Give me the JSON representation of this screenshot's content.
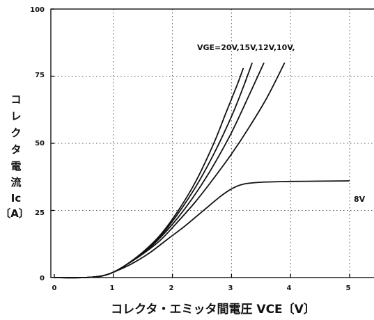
{
  "chart_data": {
    "type": "line",
    "title": "",
    "xlabel": "コレクタ・エミッタ間電圧 VCE〔V〕",
    "ylabel_lines": [
      "コ",
      "レ",
      "ク",
      "タ",
      "電",
      "流",
      "Ic",
      "〔A〕"
    ],
    "xlim": [
      0,
      5.45
    ],
    "ylim": [
      0,
      100
    ],
    "x_ticks": [
      "0",
      "1",
      "2",
      "3",
      "4",
      "5"
    ],
    "y_ticks": [
      "0",
      "25",
      "50",
      "75",
      "100"
    ],
    "grid": "dotted",
    "annotations": {
      "gate_voltages": "VGE=20V,15V,12V,10V,",
      "low_curve": "8V"
    },
    "series": [
      {
        "x": [
          0,
          0.5,
          0.8,
          1.0,
          1.2,
          1.5,
          1.8,
          2.1,
          2.4,
          2.7,
          2.9,
          3.1,
          3.2
        ],
        "y": [
          0,
          0,
          0.6,
          2,
          4.5,
          9.5,
          16,
          25,
          36,
          50,
          61,
          72,
          78
        ]
      },
      {
        "x": [
          0,
          0.5,
          0.8,
          1.0,
          1.2,
          1.5,
          1.8,
          2.1,
          2.4,
          2.7,
          3.0,
          3.2,
          3.35
        ],
        "y": [
          0,
          0,
          0.6,
          2,
          4.5,
          9.3,
          15.5,
          24,
          34,
          46,
          60,
          71,
          80
        ]
      },
      {
        "x": [
          0,
          0.5,
          0.8,
          1.0,
          1.2,
          1.5,
          1.8,
          2.1,
          2.4,
          2.7,
          3.0,
          3.3,
          3.55
        ],
        "y": [
          0,
          0,
          0.6,
          2,
          4.5,
          9,
          15,
          22.5,
          31.5,
          42,
          54,
          68,
          80
        ]
      },
      {
        "x": [
          0,
          0.5,
          0.8,
          1.0,
          1.2,
          1.5,
          1.8,
          2.1,
          2.4,
          2.7,
          3.0,
          3.3,
          3.6,
          3.9
        ],
        "y": [
          0,
          0,
          0.6,
          2,
          4.5,
          8.8,
          14,
          21,
          28.5,
          37,
          46,
          56,
          67,
          80
        ]
      },
      {
        "x": [
          0,
          0.5,
          0.8,
          1.0,
          1.3,
          1.6,
          1.9,
          2.2,
          2.5,
          2.8,
          3.0,
          3.2,
          3.5,
          4.0,
          4.5,
          5.0
        ],
        "y": [
          0,
          0,
          0.6,
          2,
          5,
          9,
          14,
          19,
          24.5,
          30,
          33,
          34.8,
          35.5,
          35.8,
          35.9,
          36
        ]
      }
    ]
  }
}
